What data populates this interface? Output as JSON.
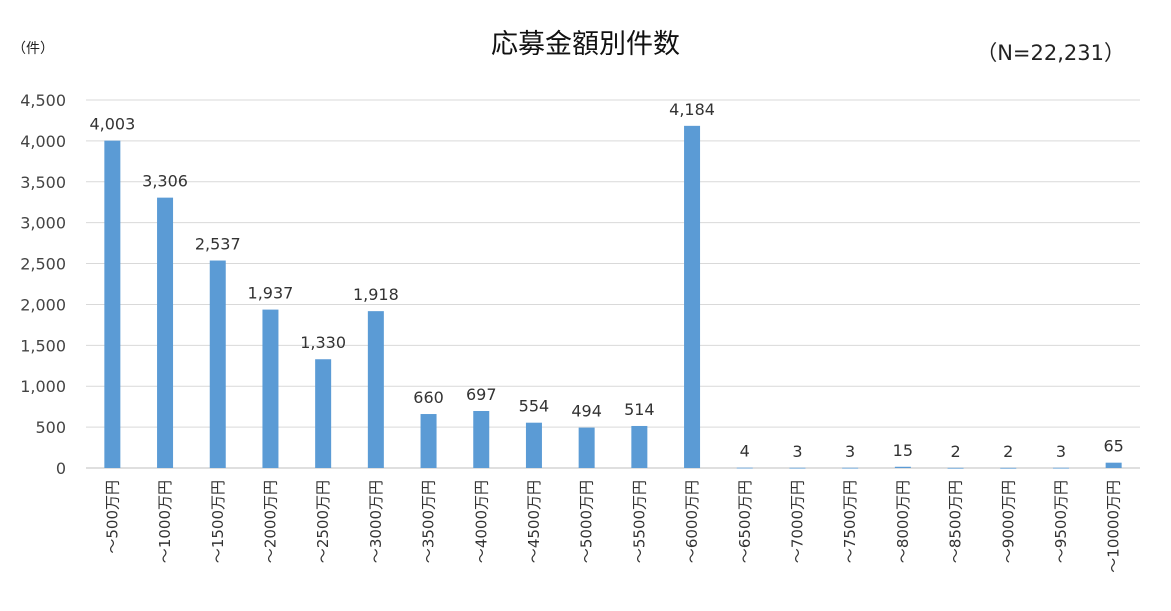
{
  "chart_data": {
    "type": "bar",
    "title": "応募金額別件数",
    "ylabel": "（件）",
    "note": "（N=22,231）",
    "ylim": [
      0,
      4500
    ],
    "yticks": [
      0,
      500,
      1000,
      1500,
      2000,
      2500,
      3000,
      3500,
      4000,
      4500
    ],
    "ytick_labels": [
      "0",
      "500",
      "1,000",
      "1,500",
      "2,000",
      "2,500",
      "3,000",
      "3,500",
      "4,000",
      "4,500"
    ],
    "categories": [
      "～500万円",
      "～1000万円",
      "～1500万円",
      "～2000万円",
      "～2500万円",
      "～3000万円",
      "～3500万円",
      "～4000万円",
      "～4500万円",
      "～5000万円",
      "～5500万円",
      "～6000万円",
      "～6500万円",
      "～7000万円",
      "～7500万円",
      "～8000万円",
      "～8500万円",
      "～9000万円",
      "～9500万円",
      "～10000万円"
    ],
    "values": [
      4003,
      3306,
      2537,
      1937,
      1330,
      1918,
      660,
      697,
      554,
      494,
      514,
      4184,
      4,
      3,
      3,
      15,
      2,
      2,
      3,
      65
    ],
    "value_labels": [
      "4,003",
      "3,306",
      "2,537",
      "1,937",
      "1,330",
      "1,918",
      "660",
      "697",
      "554",
      "494",
      "514",
      "4,184",
      "4",
      "3",
      "3",
      "15",
      "2",
      "2",
      "3",
      "65"
    ],
    "grid": true,
    "colors": {
      "bar": "#5b9bd5",
      "grid": "#d9d9d9",
      "axis": "#bfbfbf"
    }
  }
}
